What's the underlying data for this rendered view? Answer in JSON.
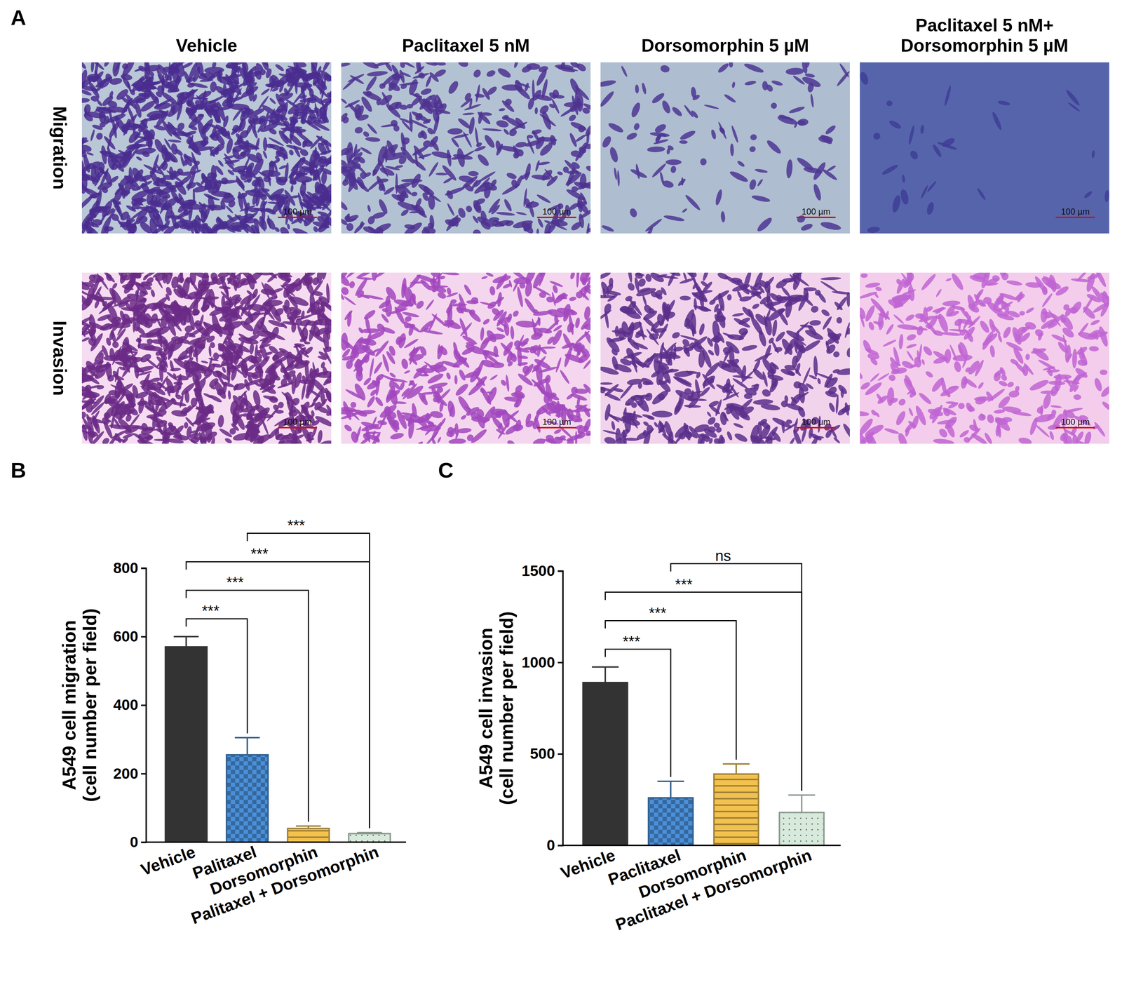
{
  "panel_a": {
    "label": "A",
    "columns": [
      "Vehicle",
      "Paclitaxel 5 nM",
      "Dorsomorphin 5 µM",
      "Paclitaxel 5 nM+ Dorsomorphin 5 µM"
    ],
    "rows": [
      "Migration",
      "Invasion"
    ],
    "scale_bar": "100 µm"
  },
  "chart_data": [
    {
      "type": "bar",
      "panel": "B",
      "ylabel": [
        "A549 cell migration",
        "(cell number per field)"
      ],
      "categories": [
        "Vehicle",
        "Palitaxel",
        "Dorsomorphin",
        "Palitaxel + Dorsomorphin"
      ],
      "values": [
        570,
        255,
        40,
        25
      ],
      "errors": [
        30,
        50,
        7,
        3
      ],
      "colors": [
        "#333333",
        "#4a90d9",
        "#f2c14e",
        "#d7eadb"
      ],
      "ylim": [
        0,
        800
      ],
      "yticks": [
        0,
        200,
        400,
        600,
        800
      ],
      "grid": false,
      "comparisons": [
        {
          "groups": [
            0,
            1
          ],
          "label": "***"
        },
        {
          "groups": [
            0,
            2
          ],
          "label": "***"
        },
        {
          "groups": [
            0,
            3
          ],
          "label": "***"
        },
        {
          "groups": [
            1,
            3
          ],
          "label": "***"
        }
      ]
    },
    {
      "type": "bar",
      "panel": "C",
      "ylabel": [
        "A549 cell invasion",
        "(cell number per field)"
      ],
      "categories": [
        "Vehicle",
        "Paclitaxel",
        "Dorsomorphin",
        "Paclitaxel + Dorsomorphin"
      ],
      "values": [
        890,
        260,
        390,
        180
      ],
      "errors": [
        85,
        90,
        55,
        95
      ],
      "colors": [
        "#333333",
        "#4a90d9",
        "#f2c14e",
        "#d7eadb"
      ],
      "ylim": [
        0,
        1500
      ],
      "yticks": [
        0,
        500,
        1000,
        1500
      ],
      "grid": false,
      "comparisons": [
        {
          "groups": [
            0,
            1
          ],
          "label": "***"
        },
        {
          "groups": [
            0,
            2
          ],
          "label": "***"
        },
        {
          "groups": [
            0,
            3
          ],
          "label": "***"
        },
        {
          "groups": [
            1,
            3
          ],
          "label": "ns"
        }
      ]
    }
  ]
}
